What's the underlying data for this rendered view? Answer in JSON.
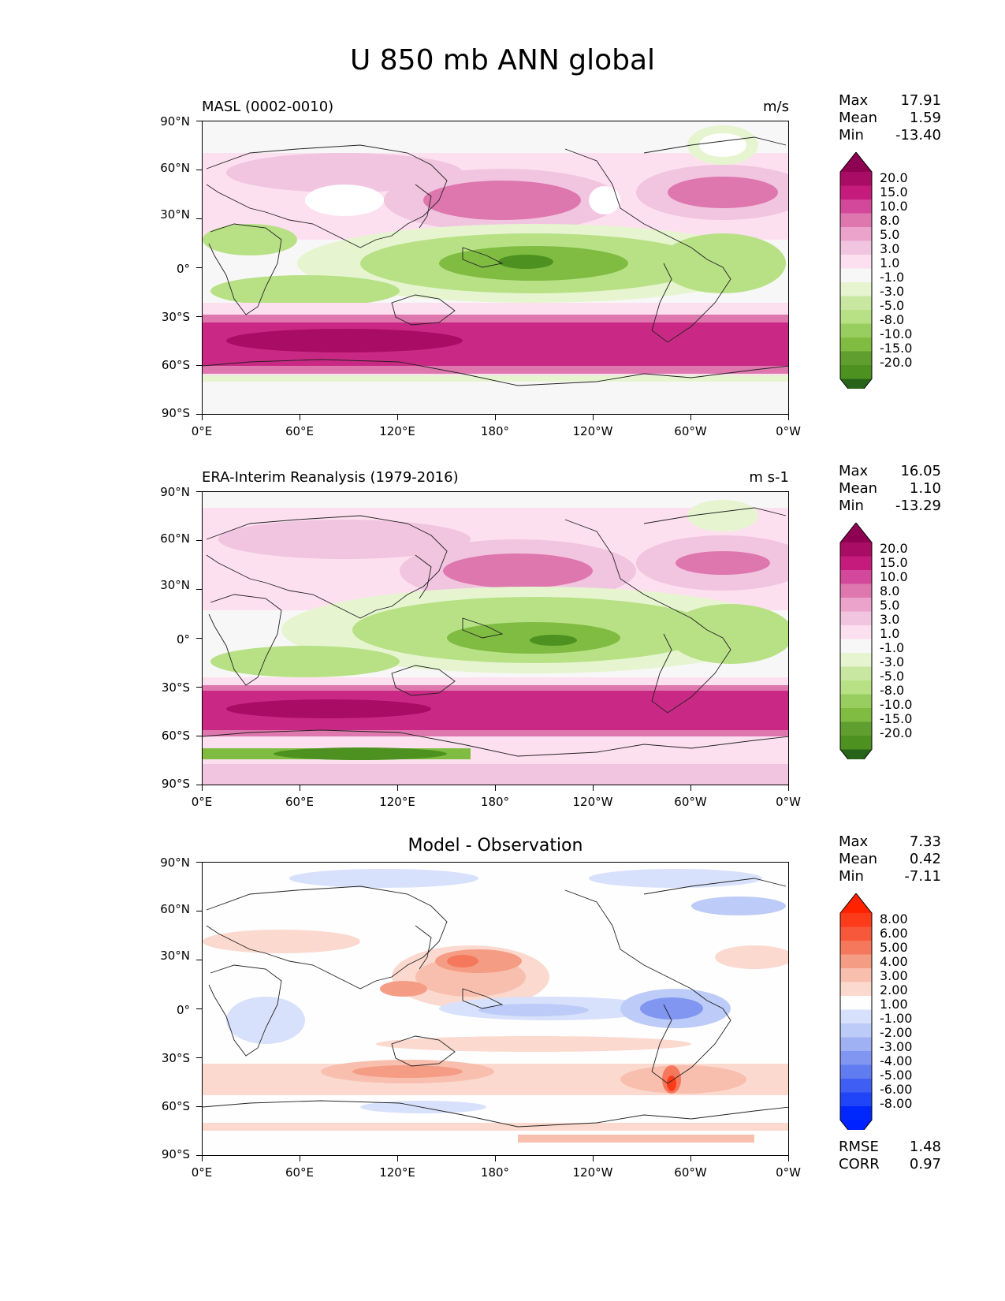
{
  "title": "U 850 mb ANN global",
  "axis": {
    "y_ticks": [
      "90°N",
      "60°N",
      "30°N",
      "0°",
      "30°S",
      "60°S",
      "90°S"
    ],
    "x_ticks": [
      "0°E",
      "60°E",
      "120°E",
      "180°",
      "120°W",
      "60°W",
      "0°W"
    ]
  },
  "panels": [
    {
      "title": "MASL (0002-0010)",
      "units": "m/s",
      "stats": {
        "max_label": "Max",
        "max": "17.91",
        "mean_label": "Mean",
        "mean": "1.59",
        "min_label": "Min",
        "min": "-13.40"
      },
      "colorbar": {
        "labels": [
          "20.0",
          "15.0",
          "10.0",
          "8.0",
          "5.0",
          "3.0",
          "1.0",
          "-1.0",
          "-3.0",
          "-5.0",
          "-8.0",
          "-10.0",
          "-15.0",
          "-20.0"
        ],
        "colors": [
          "#8e0152",
          "#a90c64",
          "#c51b7d",
          "#d3489a",
          "#de77ae",
          "#eba3cc",
          "#f1c4e0",
          "#fde0ef",
          "#f7f7f7",
          "#e6f5d0",
          "#c8e8a2",
          "#b8e186",
          "#98cd60",
          "#7fbc41",
          "#5f9e2f",
          "#4d9221",
          "#276419"
        ]
      }
    },
    {
      "title": "ERA-Interim Reanalysis (1979-2016)",
      "units": "m s-1",
      "stats": {
        "max_label": "Max",
        "max": "16.05",
        "mean_label": "Mean",
        "mean": "1.10",
        "min_label": "Min",
        "min": "-13.29"
      },
      "colorbar": {
        "labels": [
          "20.0",
          "15.0",
          "10.0",
          "8.0",
          "5.0",
          "3.0",
          "1.0",
          "-1.0",
          "-3.0",
          "-5.0",
          "-8.0",
          "-10.0",
          "-15.0",
          "-20.0"
        ],
        "colors": [
          "#8e0152",
          "#a90c64",
          "#c51b7d",
          "#d3489a",
          "#de77ae",
          "#eba3cc",
          "#f1c4e0",
          "#fde0ef",
          "#f7f7f7",
          "#e6f5d0",
          "#c8e8a2",
          "#b8e186",
          "#98cd60",
          "#7fbc41",
          "#5f9e2f",
          "#4d9221",
          "#276419"
        ]
      }
    },
    {
      "title": "Model - Observation",
      "units": "",
      "stats": {
        "max_label": "Max",
        "max": "7.33",
        "mean_label": "Mean",
        "mean": "0.42",
        "min_label": "Min",
        "min": "-7.11"
      },
      "extra": {
        "rmse_label": "RMSE",
        "rmse": "1.48",
        "corr_label": "CORR",
        "corr": "0.97"
      },
      "colorbar": {
        "labels": [
          "8.00",
          "6.00",
          "5.00",
          "4.00",
          "3.00",
          "2.00",
          "1.00",
          "-1.00",
          "-2.00",
          "-3.00",
          "-4.00",
          "-5.00",
          "-6.00",
          "-8.00"
        ],
        "colors": [
          "#ff2200",
          "#fc3b1b",
          "#f7573a",
          "#f5785c",
          "#f59c84",
          "#f8bfae",
          "#fbd9cf",
          "#fefefe",
          "#d8e1fb",
          "#bccbf7",
          "#9fb0f3",
          "#8096f1",
          "#607cf0",
          "#3f5ef3",
          "#2044f7",
          "#0028fd",
          "#0022ff"
        ]
      }
    }
  ]
}
